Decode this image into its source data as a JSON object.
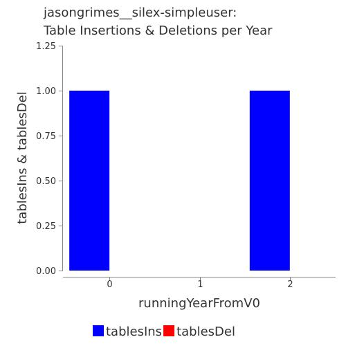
{
  "chart_data": {
    "type": "bar",
    "title_lines": [
      "jasongrimes__silex-simpleuser:",
      "Table Insertions & Deletions per Year"
    ],
    "xlabel": "runningYearFromV0",
    "ylabel": "tablesIns & tablesDel",
    "categories": [
      "0",
      "1",
      "2"
    ],
    "series": [
      {
        "name": "tablesIns",
        "color": "#0000ff",
        "values": [
          1,
          0,
          1
        ]
      },
      {
        "name": "tablesDel",
        "color": "#ff0000",
        "values": [
          0,
          0,
          0
        ]
      }
    ],
    "ylim": [
      0,
      1.25
    ],
    "yticks": [
      "0.00",
      "0.25",
      "0.50",
      "0.75",
      "1.00",
      "1.25"
    ],
    "grid": false,
    "legend_position": "bottom"
  }
}
